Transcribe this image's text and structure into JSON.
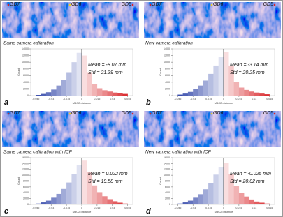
{
  "panels": [
    {
      "label": "a",
      "markers": [
        "GD7",
        "GD6",
        "GD5"
      ],
      "caption": "Same camera calibration",
      "mean": "Mean = -8.07 mm",
      "std": "Std = 21.39 mm",
      "histogram": {
        "type": "histogram",
        "y_label": "Count",
        "x_label": "M3C2 distance",
        "neg_color": "#2f44a8",
        "pos_color": "#d8262a",
        "bins": [
          -0.045,
          -0.04,
          -0.035,
          -0.03,
          -0.025,
          -0.02,
          -0.015,
          -0.01,
          -0.005,
          0,
          0.005,
          0.01,
          0.015,
          0.02,
          0.025,
          0.03,
          0.035,
          0.04,
          0.045
        ],
        "values": [
          200,
          500,
          1000,
          1800,
          3000,
          4800,
          7000,
          10000,
          12800,
          12000,
          7000,
          3500,
          2200,
          1600,
          1200,
          900,
          700,
          500
        ],
        "xlim": [
          -0.05,
          0.05
        ],
        "xticks": [
          -0.045,
          -0.03,
          -0.015,
          0,
          0.015,
          0.03,
          0.045
        ],
        "ylim": [
          0,
          14000
        ],
        "yticks": [
          0,
          2000,
          4000,
          6000,
          8000,
          10000,
          12000,
          14000
        ]
      }
    },
    {
      "label": "b",
      "markers": [
        "GD7",
        "GD6",
        "GD5"
      ],
      "caption": "New camera calibration",
      "mean": "Mean = -3.14 mm",
      "std": "Std = 20.25 mm",
      "histogram": {
        "type": "histogram",
        "y_label": "Count",
        "x_label": "M3C2 distance",
        "neg_color": "#2f44a8",
        "pos_color": "#d8262a",
        "bins": [
          -0.045,
          -0.04,
          -0.035,
          -0.03,
          -0.025,
          -0.02,
          -0.015,
          -0.01,
          -0.005,
          0,
          0.005,
          0.01,
          0.015,
          0.02,
          0.025,
          0.03,
          0.035,
          0.04,
          0.045
        ],
        "values": [
          300,
          600,
          1100,
          1900,
          3000,
          4500,
          6500,
          9000,
          11500,
          13000,
          9000,
          4000,
          2400,
          1700,
          1200,
          900,
          600,
          400
        ],
        "xlim": [
          -0.05,
          0.05
        ],
        "xticks": [
          -0.045,
          -0.03,
          -0.015,
          0,
          0.015,
          0.03,
          0.045
        ],
        "ylim": [
          0,
          14000
        ],
        "yticks": [
          0,
          2000,
          4000,
          6000,
          8000,
          10000,
          12000,
          14000
        ]
      }
    },
    {
      "label": "c",
      "markers": [
        "GD7",
        "GD6",
        "GD5"
      ],
      "caption": "Same camera calibration with ICP",
      "mean": "Mean = 0.022 mm",
      "std": "Std = 19.58 mm",
      "histogram": {
        "type": "histogram",
        "y_label": "Count",
        "x_label": "M3C2 distance",
        "neg_color": "#2f44a8",
        "pos_color": "#d8262a",
        "bins": [
          -0.045,
          -0.04,
          -0.035,
          -0.03,
          -0.025,
          -0.02,
          -0.015,
          -0.01,
          -0.005,
          0,
          0.005,
          0.01,
          0.015,
          0.02,
          0.025,
          0.03,
          0.035,
          0.04,
          0.045
        ],
        "values": [
          300,
          700,
          1300,
          2300,
          3600,
          5300,
          7500,
          10500,
          13500,
          15000,
          11000,
          6500,
          4200,
          2800,
          1800,
          1100,
          600,
          300
        ],
        "xlim": [
          -0.05,
          0.05
        ],
        "xticks": [
          -0.045,
          -0.03,
          -0.015,
          0,
          0.015,
          0.03,
          0.045
        ],
        "ylim": [
          0,
          16000
        ],
        "yticks": [
          0,
          2000,
          4000,
          6000,
          8000,
          10000,
          12000,
          14000,
          16000
        ]
      }
    },
    {
      "label": "d",
      "markers": [
        "GD7",
        "GD6",
        "GD5"
      ],
      "caption": "New camera calibration with ICP",
      "mean": "Mean = -0.025 mm",
      "std": "Std = 20.02 mm",
      "histogram": {
        "type": "histogram",
        "y_label": "Count",
        "x_label": "M3C2 distance",
        "neg_color": "#2f44a8",
        "pos_color": "#d8262a",
        "bins": [
          -0.045,
          -0.04,
          -0.035,
          -0.03,
          -0.025,
          -0.02,
          -0.015,
          -0.01,
          -0.005,
          0,
          0.005,
          0.01,
          0.015,
          0.02,
          0.025,
          0.03,
          0.035,
          0.04,
          0.045
        ],
        "values": [
          300,
          700,
          1300,
          2300,
          3500,
          5200,
          7400,
          10200,
          12800,
          14200,
          10500,
          6300,
          4000,
          2700,
          1700,
          1000,
          600,
          300
        ],
        "xlim": [
          -0.05,
          0.05
        ],
        "xticks": [
          -0.045,
          -0.03,
          -0.015,
          0,
          0.015,
          0.03,
          0.045
        ],
        "ylim": [
          0,
          16000
        ],
        "yticks": [
          0,
          2000,
          4000,
          6000,
          8000,
          10000,
          12000,
          14000,
          16000
        ]
      }
    }
  ]
}
